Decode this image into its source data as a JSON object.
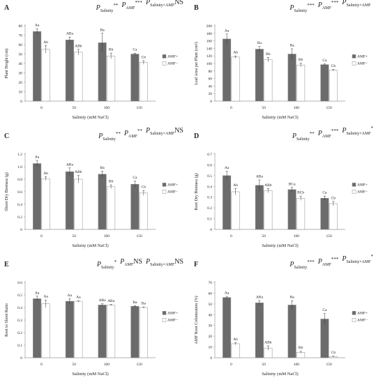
{
  "chart_data": [
    {
      "panel": "A",
      "type": "bar",
      "ylabel": "Plant Height (cm)",
      "xlabel": "Salinity (mM NaCl)",
      "ylim": [
        0,
        80
      ],
      "yticks": [
        0,
        10,
        20,
        30,
        40,
        50,
        60,
        70,
        80
      ],
      "categories": [
        "0",
        "50",
        "100",
        "150"
      ],
      "series": [
        {
          "name": "AMF+",
          "values": [
            74,
            65,
            62,
            50
          ],
          "errors": [
            3,
            3,
            10,
            1
          ],
          "labels": [
            "Aa",
            "ABa",
            "Ba",
            "Ca"
          ]
        },
        {
          "name": "AMF−",
          "values": [
            55,
            52,
            48,
            41
          ],
          "errors": [
            4,
            3,
            3,
            2
          ],
          "labels": [
            "Ab",
            "ABb",
            "Bb",
            "Cb"
          ]
        }
      ],
      "significance": [
        {
          "sub": "Salinity",
          "mark": "**"
        },
        {
          "sub": "AMF",
          "mark": "***"
        },
        {
          "sub": "Salinity×AMF",
          "mark": "NS"
        }
      ]
    },
    {
      "panel": "B",
      "type": "bar",
      "ylabel": "Leaf Area per Plant (cm²)",
      "xlabel": "Salinity (mM NaCl)",
      "ylim": [
        0,
        200
      ],
      "yticks": [
        0,
        20,
        40,
        60,
        80,
        100,
        120,
        140,
        160,
        180,
        200
      ],
      "categories": [
        "0",
        "50",
        "100",
        "150"
      ],
      "series": [
        {
          "name": "AMF+",
          "values": [
            165,
            138,
            125,
            97
          ],
          "errors": [
            13,
            7,
            14,
            2
          ],
          "labels": [
            "Aa",
            "Ba",
            "Ba",
            "Ca"
          ]
        },
        {
          "name": "AMF−",
          "values": [
            117,
            110,
            96,
            82
          ],
          "errors": [
            3,
            6,
            5,
            2
          ],
          "labels": [
            "Ab",
            "Bb",
            "Bb",
            "Cb"
          ]
        }
      ],
      "significance": [
        {
          "sub": "Salinity",
          "mark": "***"
        },
        {
          "sub": "AMF",
          "mark": "***"
        },
        {
          "sub": "Salinity×AMF",
          "mark": "*"
        }
      ]
    },
    {
      "panel": "C",
      "type": "bar",
      "ylabel": "Shoot Dry Biomass (g)",
      "xlabel": "Salinity (mM NaCl)",
      "ylim": [
        0,
        1.2
      ],
      "yticks": [
        0,
        0.2,
        0.4,
        0.6,
        0.8,
        1.0,
        1.2
      ],
      "yticklabels": [
        "0",
        "0.2",
        "0.4",
        "0.6",
        "0.8",
        "1.0",
        "1.2"
      ],
      "categories": [
        "0",
        "50",
        "100",
        "150"
      ],
      "series": [
        {
          "name": "AMF+",
          "values": [
            1.05,
            0.92,
            0.88,
            0.72
          ],
          "errors": [
            0.05,
            0.06,
            0.05,
            0.05
          ],
          "labels": [
            "Aa",
            "ABa",
            "Ba",
            "Ca"
          ]
        },
        {
          "name": "AMF−",
          "values": [
            0.81,
            0.8,
            0.68,
            0.58
          ],
          "errors": [
            0.03,
            0.06,
            0.03,
            0.04
          ],
          "labels": [
            "Ab",
            "ABb",
            "Bb",
            "Cb"
          ]
        }
      ],
      "significance": [
        {
          "sub": "Salinity",
          "mark": "**"
        },
        {
          "sub": "AMF",
          "mark": "**"
        },
        {
          "sub": "Salinity×AMF",
          "mark": "NS"
        }
      ]
    },
    {
      "panel": "D",
      "type": "bar",
      "ylabel": "Root Dry Biomass (g)",
      "xlabel": "Salinity (mM NaCl)",
      "ylim": [
        0,
        0.7
      ],
      "yticks": [
        0,
        0.1,
        0.2,
        0.3,
        0.4,
        0.5,
        0.6,
        0.7
      ],
      "yticklabels": [
        "0",
        "0.1",
        "0.2",
        "0.3",
        "0.4",
        "0.5",
        "0.6",
        "0.7"
      ],
      "categories": [
        "0",
        "50",
        "100",
        "150"
      ],
      "series": [
        {
          "name": "AMF+",
          "values": [
            0.5,
            0.41,
            0.37,
            0.29
          ],
          "errors": [
            0.04,
            0.05,
            0.02,
            0.02
          ],
          "labels": [
            "Aa",
            "ABa",
            "BCa",
            "Ca"
          ]
        },
        {
          "name": "AMF−",
          "values": [
            0.35,
            0.36,
            0.29,
            0.24
          ],
          "errors": [
            0.03,
            0.02,
            0.02,
            0.02
          ],
          "labels": [
            "Ab",
            "ABb",
            "BCb",
            "Cb"
          ]
        }
      ],
      "significance": [
        {
          "sub": "Salinity",
          "mark": "**"
        },
        {
          "sub": "AMF",
          "mark": "***"
        },
        {
          "sub": "Salinity×AMF",
          "mark": "*"
        }
      ]
    },
    {
      "panel": "E",
      "type": "bar",
      "ylabel": "Root to Shoot Ratio",
      "xlabel": "Salinity (mM NaCl)",
      "ylim": [
        0,
        0.6
      ],
      "yticks": [
        0,
        0.1,
        0.2,
        0.3,
        0.4,
        0.5,
        0.6
      ],
      "yticklabels": [
        "0",
        "0.1",
        "0.2",
        "0.3",
        "0.4",
        "0.5",
        "0.6"
      ],
      "categories": [
        "0",
        "50",
        "100",
        "150"
      ],
      "series": [
        {
          "name": "AMF+",
          "values": [
            0.47,
            0.45,
            0.42,
            0.41
          ],
          "errors": [
            0.02,
            0.02,
            0.01,
            0.005
          ],
          "labels": [
            "Aa",
            "Aa",
            "ABa",
            "Ba"
          ]
        },
        {
          "name": "AMF−",
          "values": [
            0.43,
            0.45,
            0.42,
            0.4
          ],
          "errors": [
            0.03,
            0.005,
            0.005,
            0.005
          ],
          "labels": [
            "Aa",
            "Aa",
            "ABa",
            "Ba"
          ]
        }
      ],
      "significance": [
        {
          "sub": "Salinity",
          "mark": "*"
        },
        {
          "sub": "AMF",
          "mark": "NS"
        },
        {
          "sub": "Salinity×AMF",
          "mark": "NS"
        }
      ]
    },
    {
      "panel": "F",
      "type": "bar",
      "ylabel": "AMF Root Colonization (%)",
      "xlabel": "Salinity (mM NaCl)",
      "ylim": [
        0,
        70
      ],
      "yticks": [
        0,
        10,
        20,
        30,
        40,
        50,
        60,
        70
      ],
      "categories": [
        "0",
        "50",
        "100",
        "150"
      ],
      "series": [
        {
          "name": "AMF+",
          "values": [
            56,
            51,
            49,
            36
          ],
          "errors": [
            1,
            2,
            4,
            5
          ],
          "labels": [
            "Aa",
            "ABa",
            "Ba",
            "Ca"
          ]
        },
        {
          "name": "AMF−",
          "values": [
            13,
            9,
            5,
            1
          ],
          "errors": [
            1,
            2,
            1,
            0.5
          ],
          "labels": [
            "Ab",
            "ABb",
            "Bb",
            "Cb"
          ]
        }
      ],
      "significance": [
        {
          "sub": "Salinity",
          "mark": "***"
        },
        {
          "sub": "AMF",
          "mark": "***"
        },
        {
          "sub": "Salinity×AMF",
          "mark": "*"
        }
      ]
    }
  ],
  "colors": {
    "amf_plus": "#6b6b6b",
    "amf_minus": "#ffffff",
    "axis": "#9a9a9a",
    "text": "#222222"
  },
  "sig_letter": "P"
}
